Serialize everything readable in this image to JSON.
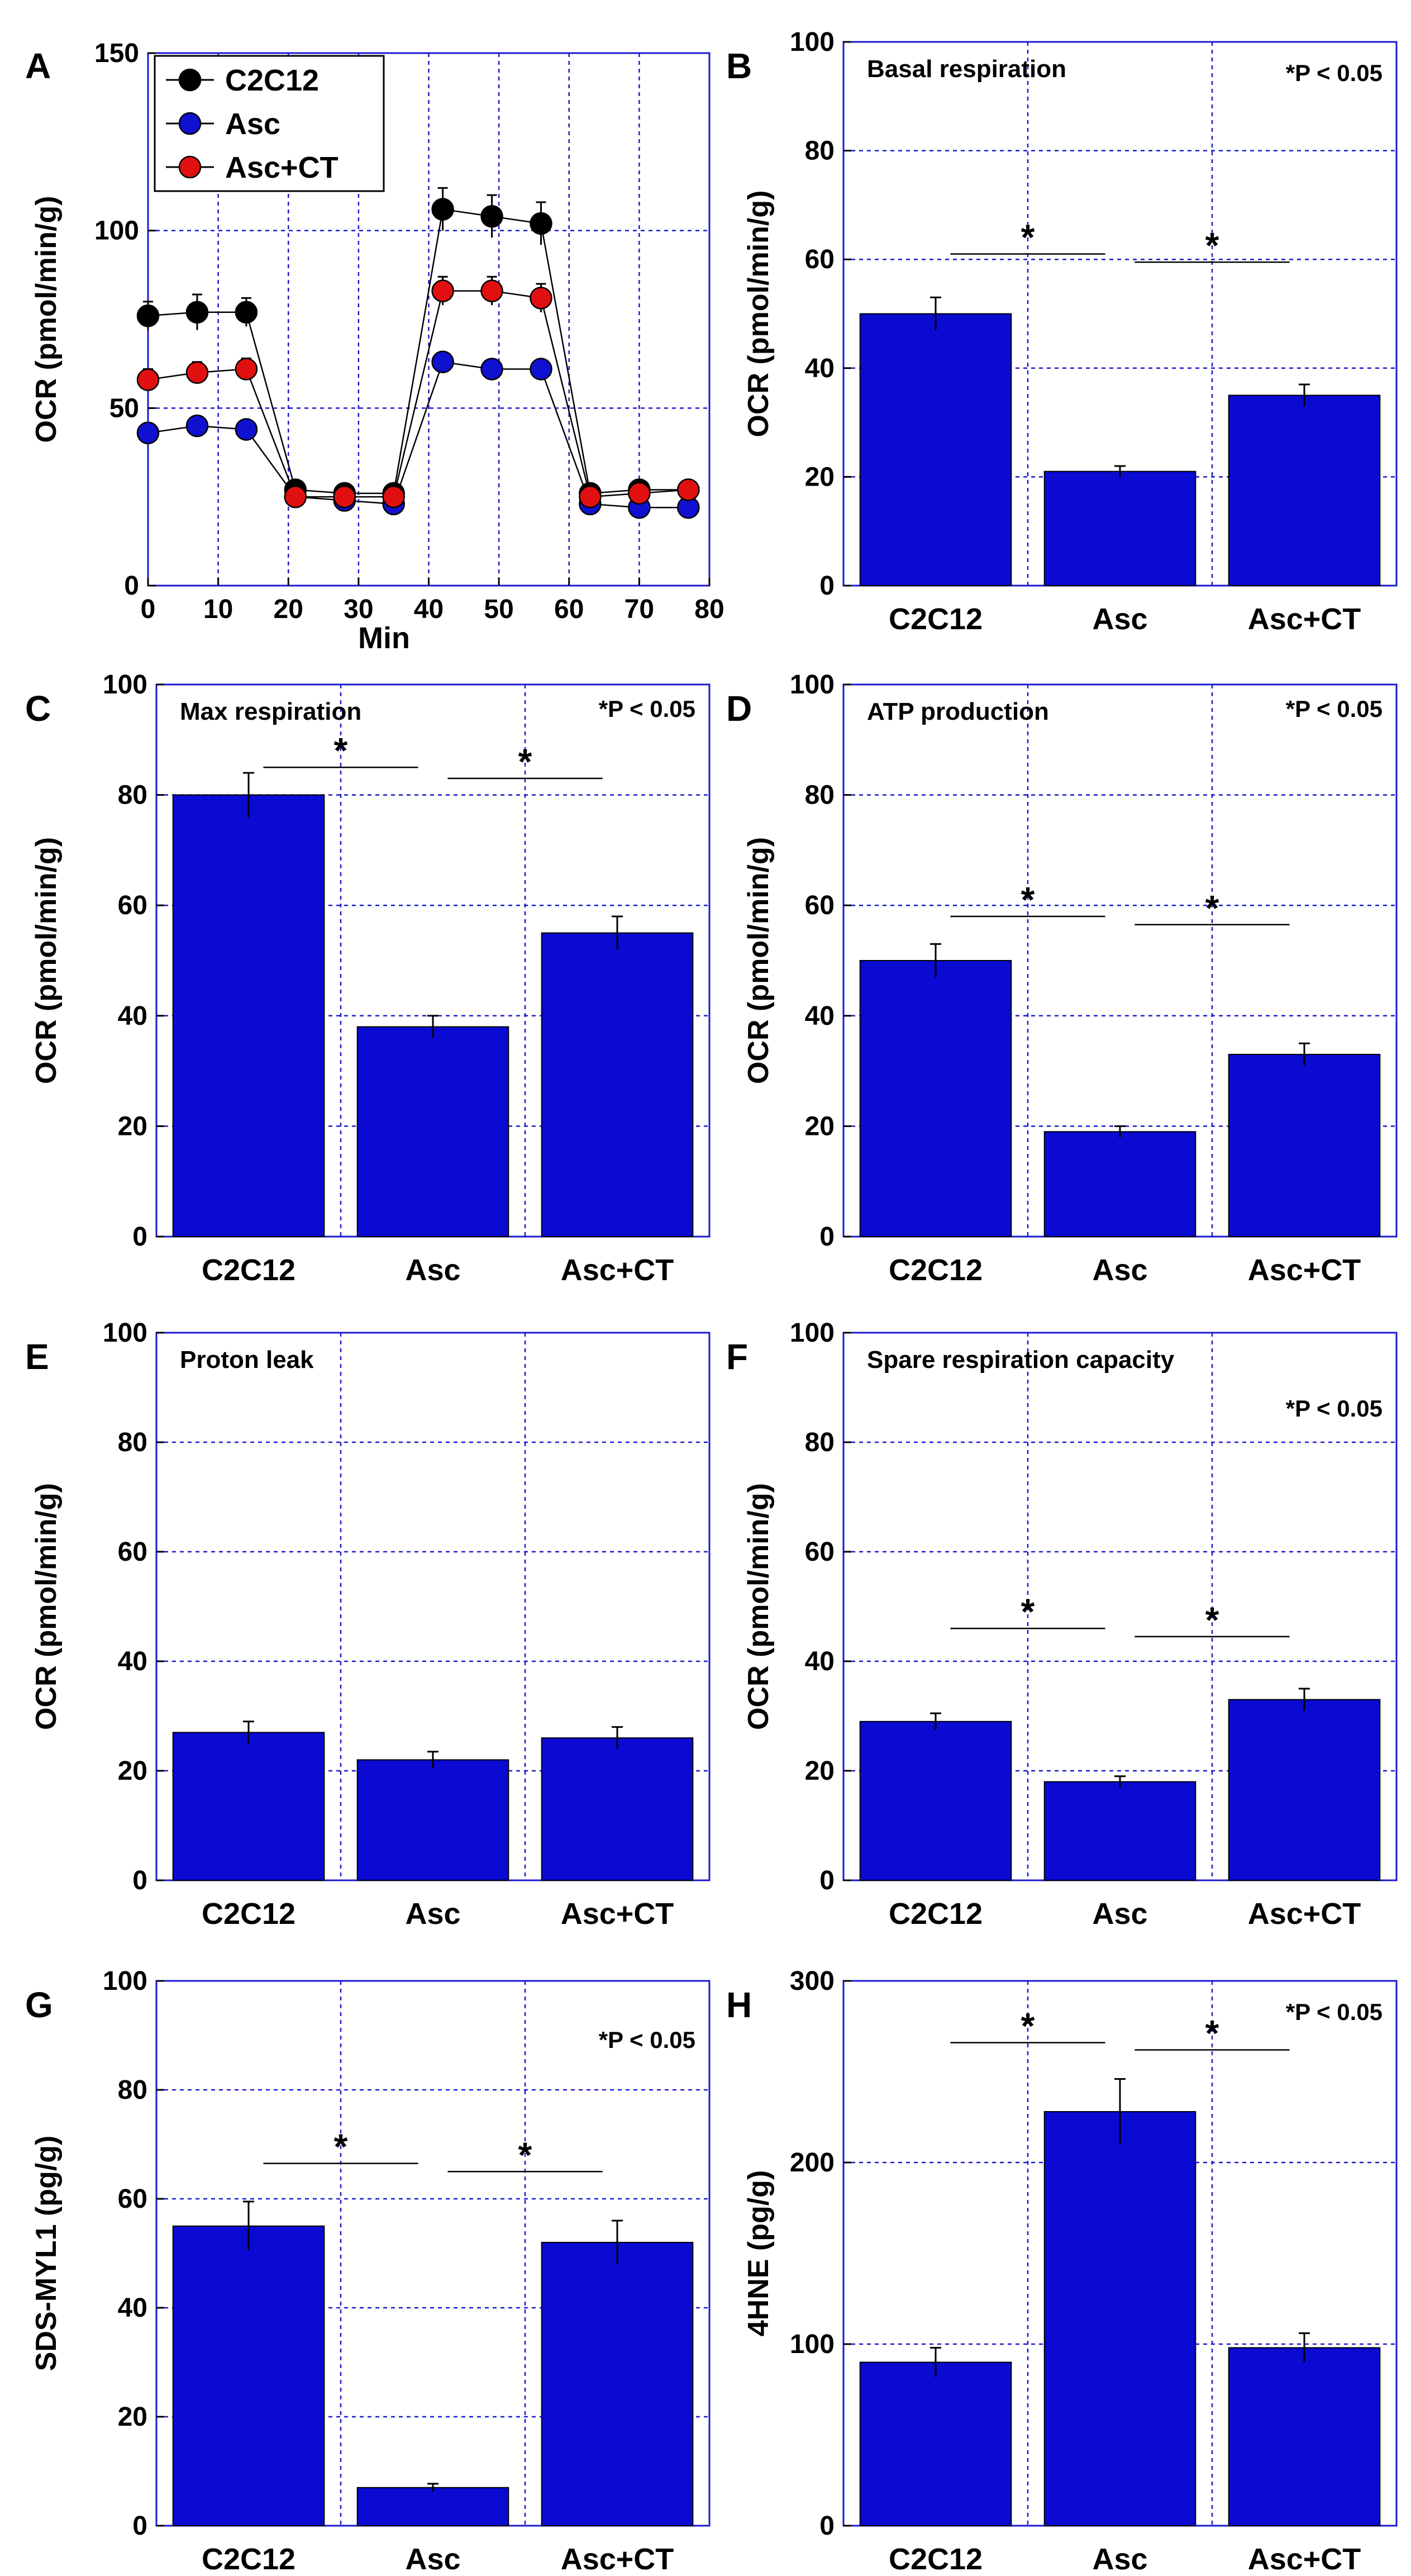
{
  "chart_data": [
    {
      "panel": "A",
      "type": "line",
      "ylabel": "OCR (pmol/min/g)",
      "xlabel": "Min",
      "xlim": [
        0,
        80
      ],
      "ylim": [
        0,
        150
      ],
      "xticks": [
        0,
        10,
        20,
        30,
        40,
        50,
        60,
        70,
        80
      ],
      "yticks": [
        0,
        50,
        100,
        150
      ],
      "x": [
        0,
        7,
        14,
        21,
        28,
        35,
        42,
        49,
        56,
        63,
        70,
        77
      ],
      "series": [
        {
          "name": "C2C12",
          "color": "#000000",
          "values": [
            76,
            77,
            77,
            27,
            26,
            26,
            106,
            104,
            102,
            26,
            27,
            27
          ],
          "errors": [
            4,
            5,
            4,
            2,
            2,
            2,
            6,
            6,
            6,
            2,
            2,
            2
          ]
        },
        {
          "name": "Asc",
          "color": "#1010d0",
          "values": [
            43,
            45,
            44,
            25,
            24,
            23,
            63,
            61,
            61,
            23,
            22,
            22
          ],
          "errors": [
            2,
            2,
            2,
            1,
            1,
            1,
            2,
            2,
            2,
            1,
            1,
            1
          ]
        },
        {
          "name": "Asc+CT",
          "color": "#e01010",
          "values": [
            58,
            60,
            61,
            25,
            25,
            25,
            83,
            83,
            81,
            25,
            26,
            27
          ],
          "errors": [
            3,
            3,
            3,
            2,
            2,
            2,
            4,
            4,
            4,
            2,
            2,
            2
          ]
        }
      ]
    },
    {
      "panel": "B",
      "type": "bar",
      "title": "Basal respiration",
      "pnote": "*P < 0.05",
      "ylabel": "OCR (pmol/min/g)",
      "ylim": [
        0,
        100
      ],
      "yticks": [
        0,
        20,
        40,
        60,
        80,
        100
      ],
      "categories": [
        "C2C12",
        "Asc",
        "Asc+CT"
      ],
      "values": [
        50,
        21,
        35
      ],
      "errors": [
        3,
        1,
        2
      ],
      "sig": [
        {
          "from": 0,
          "to": 1,
          "y": 61,
          "label": "*"
        },
        {
          "from": 1,
          "to": 2,
          "y": 59.5,
          "label": "*"
        }
      ]
    },
    {
      "panel": "C",
      "type": "bar",
      "title": "Max respiration",
      "pnote": "*P < 0.05",
      "ylabel": "OCR (pmol/min/g)",
      "ylim": [
        0,
        100
      ],
      "yticks": [
        0,
        20,
        40,
        60,
        80,
        100
      ],
      "categories": [
        "C2C12",
        "Asc",
        "Asc+CT"
      ],
      "values": [
        80,
        38,
        55
      ],
      "errors": [
        4,
        2,
        3
      ],
      "sig": [
        {
          "from": 0,
          "to": 1,
          "y": 85,
          "label": "*"
        },
        {
          "from": 1,
          "to": 2,
          "y": 83,
          "label": "*"
        }
      ]
    },
    {
      "panel": "D",
      "type": "bar",
      "title": "ATP production",
      "pnote": "*P < 0.05",
      "ylabel": "OCR (pmol/min/g)",
      "ylim": [
        0,
        100
      ],
      "yticks": [
        0,
        20,
        40,
        60,
        80,
        100
      ],
      "categories": [
        "C2C12",
        "Asc",
        "Asc+CT"
      ],
      "values": [
        50,
        19,
        33
      ],
      "errors": [
        3,
        1,
        2
      ],
      "sig": [
        {
          "from": 0,
          "to": 1,
          "y": 58,
          "label": "*"
        },
        {
          "from": 1,
          "to": 2,
          "y": 56.5,
          "label": "*"
        }
      ]
    },
    {
      "panel": "E",
      "type": "bar",
      "title": "Proton leak",
      "pnote": "",
      "ylabel": "OCR (pmol/min/g)",
      "ylim": [
        0,
        100
      ],
      "yticks": [
        0,
        20,
        40,
        60,
        80,
        100
      ],
      "categories": [
        "C2C12",
        "Asc",
        "Asc+CT"
      ],
      "values": [
        27,
        22,
        26
      ],
      "errors": [
        2,
        1.5,
        2
      ],
      "sig": []
    },
    {
      "panel": "F",
      "type": "bar",
      "title": "Spare respiration capacity",
      "pnote": "*P < 0.05",
      "ylabel": "OCR (pmol/min/g)",
      "ylim": [
        0,
        100
      ],
      "yticks": [
        0,
        20,
        40,
        60,
        80,
        100
      ],
      "categories": [
        "C2C12",
        "Asc",
        "Asc+CT"
      ],
      "values": [
        29,
        18,
        33
      ],
      "errors": [
        1.5,
        1,
        2
      ],
      "sig": [
        {
          "from": 0,
          "to": 1,
          "y": 46,
          "label": "*"
        },
        {
          "from": 1,
          "to": 2,
          "y": 44.5,
          "label": "*"
        }
      ]
    },
    {
      "panel": "G",
      "type": "bar",
      "title": "",
      "pnote": "*P < 0.05",
      "ylabel": "SDS-MYL1 (pg/g)",
      "ylim": [
        0,
        100
      ],
      "yticks": [
        0,
        20,
        40,
        60,
        80,
        100
      ],
      "categories": [
        "C2C12",
        "Asc",
        "Asc+CT"
      ],
      "values": [
        55,
        7,
        52
      ],
      "errors": [
        4.5,
        0.7,
        4
      ],
      "sig": [
        {
          "from": 0,
          "to": 1,
          "y": 66.5,
          "label": "*"
        },
        {
          "from": 1,
          "to": 2,
          "y": 65,
          "label": "*"
        }
      ]
    },
    {
      "panel": "H",
      "type": "bar",
      "title": "",
      "pnote": "*P < 0.05",
      "ylabel": "4HNE (pg/g)",
      "ylim": [
        0,
        300
      ],
      "yticks": [
        100,
        200,
        300
      ],
      "yzero_label": "0",
      "categories": [
        "C2C12",
        "Asc",
        "Asc+CT"
      ],
      "values": [
        90,
        228,
        98
      ],
      "errors": [
        8,
        18,
        8
      ],
      "sig": [
        {
          "from": 0,
          "to": 1,
          "y": 266,
          "label": "*"
        },
        {
          "from": 1,
          "to": 2,
          "y": 262,
          "label": "*"
        }
      ]
    }
  ],
  "colors": {
    "bar": "#0a0ad2",
    "grid": "#1a1ad0",
    "axis": "#1a1ad0"
  }
}
